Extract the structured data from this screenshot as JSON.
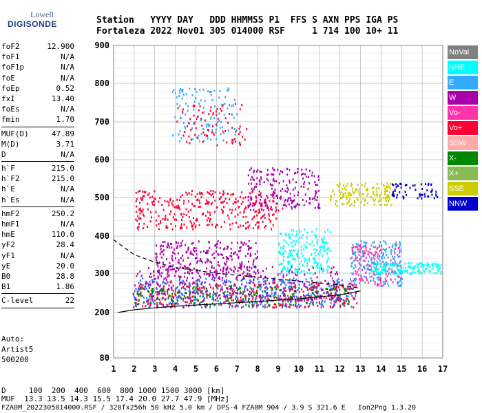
{
  "logo": {
    "line1": "Lowell",
    "line2": "DIGISONDE"
  },
  "header": {
    "row1": "Station   YYYY DAY   DDD HHMMSS P1  FFS S AXN PPS IGA PS",
    "row2": "Fortaleza 2022 Nov01 305 014000 RSF     1 714 100 10+ 11"
  },
  "params": [
    [
      {
        "k": "foF2",
        "v": "12.900"
      },
      {
        "k": "foF1",
        "v": "N/A"
      },
      {
        "k": "foF1p",
        "v": "N/A"
      },
      {
        "k": "foE",
        "v": "N/A"
      },
      {
        "k": "foEp",
        "v": "0.52"
      },
      {
        "k": "fxI",
        "v": "13.40"
      },
      {
        "k": "foEs",
        "v": "N/A"
      },
      {
        "k": "fmin",
        "v": "1.70"
      }
    ],
    [
      {
        "k": "MUF(D)",
        "v": "47.89"
      },
      {
        "k": "M(D)",
        "v": "3.71"
      },
      {
        "k": "D",
        "v": "N/A"
      }
    ],
    [
      {
        "k": "h`F",
        "v": "215.0"
      },
      {
        "k": "h`F2",
        "v": "215.0"
      },
      {
        "k": "h`E",
        "v": "N/A"
      },
      {
        "k": "h`Es",
        "v": "N/A"
      }
    ],
    [
      {
        "k": "hmF2",
        "v": "250.2"
      },
      {
        "k": "hmF1",
        "v": "N/A"
      },
      {
        "k": "hmE",
        "v": "110.0"
      },
      {
        "k": "yF2",
        "v": "28.4"
      },
      {
        "k": "yF1",
        "v": "N/A"
      },
      {
        "k": "yE",
        "v": "20.0"
      },
      {
        "k": "B0",
        "v": "28.8"
      },
      {
        "k": "B1",
        "v": "1.86"
      }
    ],
    [
      {
        "k": "C-level",
        "v": "22"
      }
    ]
  ],
  "auto": {
    "l1": "Auto:",
    "l2": "Artist5",
    "l3": "500200"
  },
  "legend": [
    {
      "label": "NoVal",
      "color": "#808080"
    },
    {
      "label": "NNE",
      "color": "#00ffff"
    },
    {
      "label": "E",
      "color": "#33aaff"
    },
    {
      "label": "W",
      "color": "#aa00aa"
    },
    {
      "label": "Vo-",
      "color": "#ff33aa"
    },
    {
      "label": "Vo+",
      "color": "#ff0033"
    },
    {
      "label": "SSW",
      "color": "#ffaaaa"
    },
    {
      "label": "X-",
      "color": "#008800"
    },
    {
      "label": "X+",
      "color": "#88bb55"
    },
    {
      "label": "SSE",
      "color": "#cccc00"
    },
    {
      "label": "NNW",
      "color": "#0000cc"
    }
  ],
  "footer": {
    "d_row": "D     100  200  400  600  800 1000 1500 3000 [km]",
    "muf_row": "MUF  13.3 13.5 14.3 15.5 17.4 20.0 27.7 47.9 [MHz]",
    "file_row": "FZA0M_2022305014000.RSF / 320fx256h 50 kHz 5.0 km / DPS-4 FZA0M 904 / 3.9 S 321.6 E   Ion2Png 1.3.20"
  },
  "chart_data": {
    "type": "scatter",
    "xlim": [
      1,
      17
    ],
    "ylim": [
      80,
      900
    ],
    "x_ticks": [
      1,
      2,
      3,
      4,
      5,
      6,
      7,
      8,
      9,
      10,
      11,
      12,
      13,
      14,
      15,
      16,
      17
    ],
    "y_ticks": [
      80,
      200,
      300,
      400,
      500,
      600,
      700,
      800,
      900
    ],
    "grid": true,
    "scale_y": "nonlinear",
    "clusters": [
      {
        "x": [
          1.9,
          12.8
        ],
        "y": [
          215,
          290
        ],
        "color": "#3366ff",
        "n": 500
      },
      {
        "x": [
          1.9,
          12.8
        ],
        "y": [
          215,
          280
        ],
        "color": "#ff0033",
        "n": 300
      },
      {
        "x": [
          2.0,
          12.5
        ],
        "y": [
          220,
          270
        ],
        "color": "#008800",
        "n": 200
      },
      {
        "x": [
          2.0,
          12.0
        ],
        "y": [
          230,
          320
        ],
        "color": "#aa00aa",
        "n": 250
      },
      {
        "x": [
          12.5,
          15.0
        ],
        "y": [
          270,
          390
        ],
        "color": "#33aaff",
        "n": 200
      },
      {
        "x": [
          12.5,
          15.0
        ],
        "y": [
          270,
          380
        ],
        "color": "#ff33aa",
        "n": 150
      },
      {
        "x": [
          13.5,
          16.9
        ],
        "y": [
          300,
          330
        ],
        "color": "#00ffff",
        "n": 150
      },
      {
        "x": [
          3.0,
          8.0
        ],
        "y": [
          290,
          390
        ],
        "color": "#aa00aa",
        "n": 300
      },
      {
        "x": [
          9.0,
          11.5
        ],
        "y": [
          300,
          420
        ],
        "color": "#00ffff",
        "n": 200
      },
      {
        "x": [
          2.0,
          9.0
        ],
        "y": [
          420,
          520
        ],
        "color": "#ff0033",
        "n": 350
      },
      {
        "x": [
          7.5,
          11.0
        ],
        "y": [
          470,
          580
        ],
        "color": "#aa00aa",
        "n": 200
      },
      {
        "x": [
          11.5,
          14.5
        ],
        "y": [
          480,
          540
        ],
        "color": "#cccc00",
        "n": 150
      },
      {
        "x": [
          14.5,
          16.8
        ],
        "y": [
          500,
          540
        ],
        "color": "#0000cc",
        "n": 60
      },
      {
        "x": [
          3.8,
          7.0
        ],
        "y": [
          650,
          790
        ],
        "color": "#33aaff",
        "n": 120
      },
      {
        "x": [
          4.0,
          7.5
        ],
        "y": [
          640,
          750
        ],
        "color": "#ff0033",
        "n": 80
      }
    ],
    "lines": [
      {
        "name": "",
        "style": "dashed",
        "color": "#000000",
        "x": [
          1.0,
          2.0,
          3.0,
          4.0,
          6.0,
          8.0,
          10.0,
          12.0,
          13.0
        ],
        "y": [
          390,
          350,
          330,
          315,
          300,
          290,
          280,
          270,
          262
        ]
      },
      {
        "name": "",
        "style": "solid",
        "color": "#000000",
        "x": [
          1.2,
          2.0,
          3.0,
          4.0,
          6.0,
          8.0,
          10.0,
          12.0,
          13.0
        ],
        "y": [
          200,
          207,
          212,
          216,
          222,
          228,
          235,
          245,
          255
        ]
      }
    ]
  }
}
